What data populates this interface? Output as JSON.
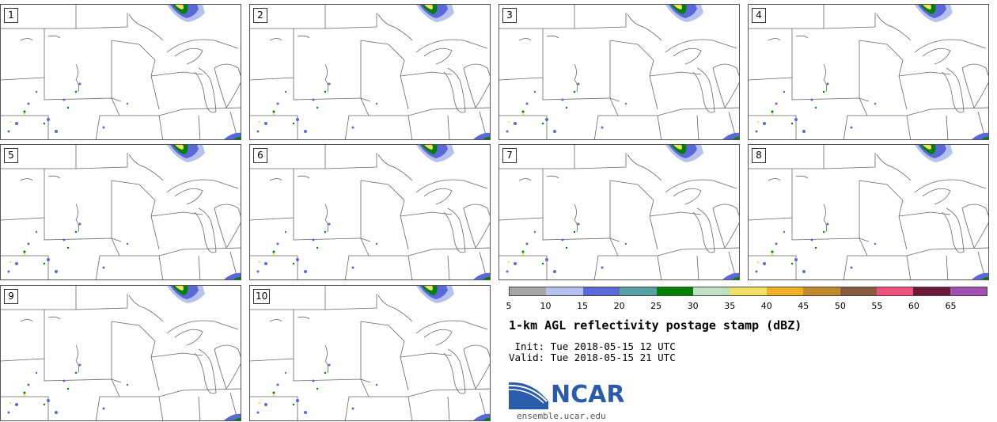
{
  "panels": [
    {
      "label": "1"
    },
    {
      "label": "2"
    },
    {
      "label": "3"
    },
    {
      "label": "4"
    },
    {
      "label": "5"
    },
    {
      "label": "6"
    },
    {
      "label": "7"
    },
    {
      "label": "8"
    },
    {
      "label": "9"
    },
    {
      "label": "10"
    }
  ],
  "colorbar": {
    "colors": [
      "#a6a6a6",
      "#b6c2ee",
      "#5a68d8",
      "#57a0a4",
      "#008000",
      "#c0e0c3",
      "#f0e068",
      "#f0b020",
      "#c08930",
      "#8c5c40",
      "#f05080",
      "#6c1838",
      "#a050b0"
    ],
    "ticks": [
      "5",
      "10",
      "15",
      "20",
      "25",
      "30",
      "35",
      "40",
      "45",
      "50",
      "55",
      "60",
      "65"
    ]
  },
  "title": "1-km AGL reflectivity postage stamp (dBZ)",
  "init": " Init: Tue 2018-05-15 12 UTC",
  "valid": "Valid: Tue 2018-05-15 21 UTC",
  "logo": {
    "text": "NCAR",
    "url": "ensemble.ucar.edu",
    "color": "#2a5cab"
  }
}
